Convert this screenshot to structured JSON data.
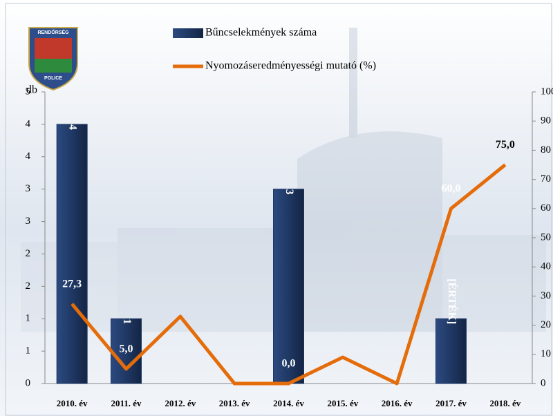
{
  "badge": {
    "top": "RENDŐRSÉG",
    "bottom": "POLICE"
  },
  "chart_data": {
    "type": "combo",
    "y_label": "db",
    "categories": [
      "2010. év",
      "2011. év",
      "2012. év",
      "2013. év",
      "2014. év",
      "2015. év",
      "2016. év",
      "2017. év",
      "2018. év"
    ],
    "series": [
      {
        "name": "Bűncselekmények száma",
        "type": "bar",
        "color": "#1f3864",
        "values": [
          4,
          1,
          null,
          null,
          3,
          null,
          null,
          1,
          null
        ],
        "value_labels": [
          "4",
          "1",
          null,
          null,
          "3",
          null,
          null,
          "[ÉRTÉK]",
          null
        ]
      },
      {
        "name": "Nyomozáseredményességi mutató (%)",
        "type": "line",
        "axis": "y2",
        "color": "#e46c0a",
        "values": [
          27.3,
          5.0,
          23,
          0,
          0.0,
          9,
          0,
          60.0,
          75.0
        ],
        "value_labels": [
          "27,3",
          "5,0",
          null,
          null,
          "0,0",
          null,
          null,
          "60,0",
          "75,0"
        ]
      }
    ],
    "ylim": [
      0,
      4.5
    ],
    "yticks": [
      0,
      {
        "value": 0.5,
        "label": "1"
      },
      1,
      {
        "value": 1.5,
        "label": "2"
      },
      2,
      {
        "value": 2.5,
        "label": "3"
      },
      3,
      {
        "value": 3.5,
        "label": "4"
      },
      4,
      {
        "value": 4.5,
        "label": "5"
      }
    ],
    "y2lim": [
      0,
      100
    ],
    "y2ticks": [
      0,
      10,
      20,
      30,
      40,
      50,
      60,
      70,
      80,
      90,
      100
    ],
    "legend": "top"
  }
}
